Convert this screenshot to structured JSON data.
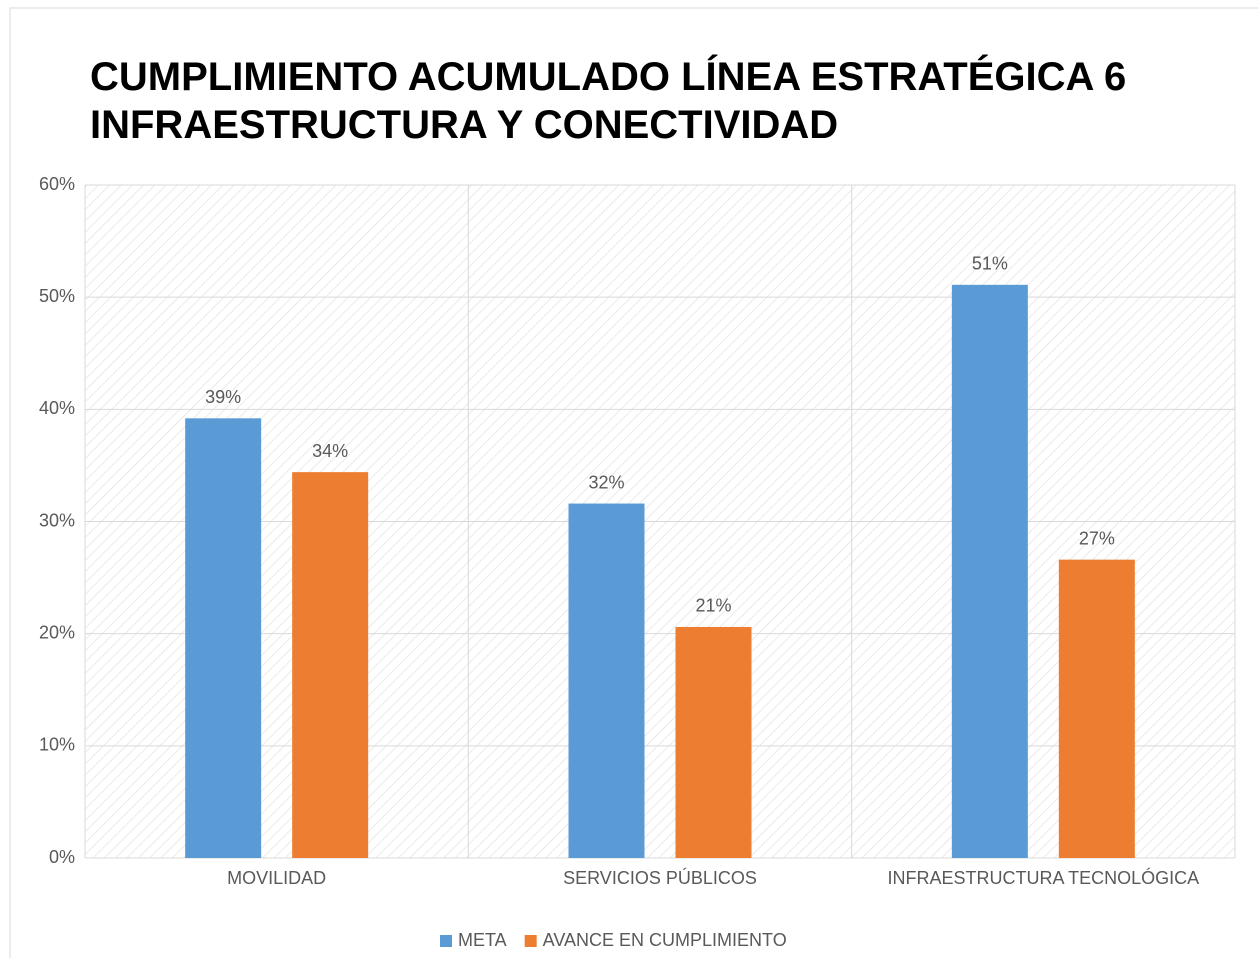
{
  "chart_data": {
    "type": "bar",
    "title": [
      "CUMPLIMIENTO ACUMULADO LÍNEA ESTRATÉGICA 6",
      "INFRAESTRUCTURA Y CONECTIVIDAD"
    ],
    "categories": [
      "MOVILIDAD",
      "SERVICIOS PÚBLICOS",
      "INFRAESTRUCTURA TECNOLÓGICA"
    ],
    "series": [
      {
        "name": "META",
        "color": "#5b9bd5",
        "values": [
          39.2,
          31.6,
          51.1
        ],
        "value_labels": [
          "39%",
          "32%",
          "51%"
        ]
      },
      {
        "name": "AVANCE EN CUMPLIMIENTO",
        "color": "#ed7d31",
        "values": [
          34.4,
          20.6,
          26.6
        ],
        "value_labels": [
          "34%",
          "21%",
          "27%"
        ]
      }
    ],
    "ylim": [
      0,
      60
    ],
    "yticks": [
      {
        "value": 0,
        "label": "0%"
      },
      {
        "value": 10,
        "label": "10%"
      },
      {
        "value": 20,
        "label": "20%"
      },
      {
        "value": 30,
        "label": "30%"
      },
      {
        "value": 40,
        "label": "40%"
      },
      {
        "value": 50,
        "label": "50%"
      },
      {
        "value": 60,
        "label": "60%"
      }
    ],
    "grid": true,
    "legend": "bottom"
  }
}
